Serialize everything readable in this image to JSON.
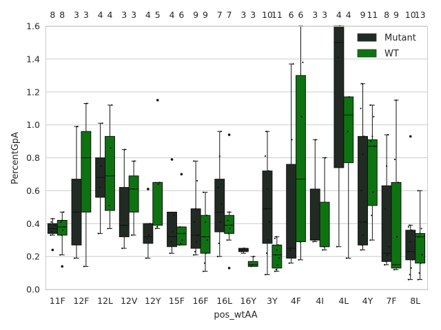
{
  "chart_data": {
    "type": "boxplot",
    "xlabel": "pos_wtAA",
    "ylabel": "PercentGpA",
    "ylim": [
      0.0,
      1.6
    ],
    "yticks": [
      "0.0",
      "0.2",
      "0.4",
      "0.6",
      "0.8",
      "1.0",
      "1.2",
      "1.4",
      "1.6"
    ],
    "grid": "horizontal",
    "legend_position": "top-right",
    "categories": [
      "11F",
      "12F",
      "12L",
      "12V",
      "12Y",
      "15F",
      "16F",
      "16L",
      "16Y",
      "3Y",
      "4F",
      "4I",
      "4L",
      "4Y",
      "7F",
      "8L"
    ],
    "count_labels": [
      [
        "8",
        "8"
      ],
      [
        "3",
        "3"
      ],
      [
        "4",
        "4"
      ],
      [
        "3",
        "3"
      ],
      [
        "4",
        "5"
      ],
      [
        "4",
        "6"
      ],
      [
        "9",
        "9"
      ],
      [
        "7",
        "7"
      ],
      [
        "3",
        "3"
      ],
      [
        "10",
        "11"
      ],
      [
        "6",
        "6"
      ],
      [
        "3",
        "3"
      ],
      [
        "4",
        "4"
      ],
      [
        "9",
        "11"
      ],
      [
        "8",
        "9"
      ],
      [
        "10",
        "13"
      ]
    ],
    "series": [
      {
        "name": "Mutant",
        "color": "#222a24",
        "boxes": [
          {
            "min": 0.33,
            "q1": 0.34,
            "median": 0.37,
            "q3": 0.4,
            "max": 0.43,
            "outliers": [
              0.24
            ],
            "points": [
              0.33,
              0.35,
              0.37,
              0.39,
              0.41,
              0.43
            ]
          },
          {
            "min": 0.19,
            "q1": 0.27,
            "median": 0.47,
            "q3": 0.67,
            "max": 0.99,
            "outliers": [],
            "points": [
              0.19,
              0.47,
              0.99
            ]
          },
          {
            "min": 0.34,
            "q1": 0.56,
            "median": 0.68,
            "q3": 0.8,
            "max": 1.01,
            "outliers": [],
            "points": [
              0.34,
              0.62,
              0.75,
              1.01
            ]
          },
          {
            "min": 0.25,
            "q1": 0.32,
            "median": 0.39,
            "q3": 0.62,
            "max": 0.85,
            "outliers": [],
            "points": [
              0.25,
              0.39,
              0.85
            ]
          },
          {
            "min": 0.19,
            "q1": 0.28,
            "median": 0.32,
            "q3": 0.4,
            "max": 0.4,
            "outliers": [
              0.61
            ],
            "points": [
              0.19,
              0.31,
              0.33,
              0.4
            ]
          },
          {
            "min": 0.22,
            "q1": 0.26,
            "median": 0.32,
            "q3": 0.47,
            "max": 0.47,
            "outliers": [
              0.79
            ],
            "points": [
              0.22,
              0.29,
              0.35,
              0.45
            ]
          },
          {
            "min": 0.21,
            "q1": 0.25,
            "median": 0.33,
            "q3": 0.49,
            "max": 0.78,
            "outliers": [],
            "points": [
              0.21,
              0.23,
              0.29,
              0.33,
              0.41,
              0.49,
              0.66,
              0.78
            ]
          },
          {
            "min": 0.2,
            "q1": 0.35,
            "median": 0.47,
            "q3": 0.67,
            "max": 0.96,
            "outliers": [],
            "points": [
              0.2,
              0.28,
              0.41,
              0.52,
              0.62,
              0.81,
              0.96
            ]
          },
          {
            "min": 0.22,
            "q1": 0.23,
            "median": 0.24,
            "q3": 0.25,
            "max": 0.25,
            "outliers": [],
            "points": [
              0.23,
              0.24,
              0.25
            ]
          },
          {
            "min": 0.09,
            "q1": 0.28,
            "median": 0.49,
            "q3": 0.72,
            "max": 0.96,
            "outliers": [],
            "points": [
              0.09,
              0.22,
              0.3,
              0.41,
              0.49,
              0.61,
              0.72,
              0.81,
              0.96
            ]
          },
          {
            "min": 0.16,
            "q1": 0.19,
            "median": 0.25,
            "q3": 0.76,
            "max": 1.37,
            "outliers": [],
            "points": [
              0.16,
              0.24,
              0.91,
              1.37
            ]
          },
          {
            "min": 0.29,
            "q1": 0.3,
            "median": 0.3,
            "q3": 0.61,
            "max": 0.91,
            "outliers": [],
            "points": [
              0.29,
              0.3,
              0.91
            ]
          },
          {
            "min": 0.26,
            "q1": 0.74,
            "median": 1.5,
            "q3": 1.6,
            "max": 1.6,
            "outliers": [],
            "points": [
              0.26,
              1.41,
              1.6
            ]
          },
          {
            "min": 0.24,
            "q1": 0.27,
            "median": 0.41,
            "q3": 0.93,
            "max": 1.25,
            "outliers": [],
            "points": [
              0.24,
              0.27,
              0.33,
              0.41,
              0.6,
              0.82,
              0.93,
              1.1,
              1.25
            ]
          },
          {
            "min": 0.15,
            "q1": 0.17,
            "median": 0.22,
            "q3": 0.63,
            "max": 0.94,
            "outliers": [],
            "points": [
              0.15,
              0.17,
              0.21,
              0.26,
              0.49,
              0.75,
              0.94
            ]
          },
          {
            "min": 0.06,
            "q1": 0.18,
            "median": 0.23,
            "q3": 0.36,
            "max": 0.39,
            "outliers": [
              0.93
            ],
            "points": [
              0.06,
              0.09,
              0.13,
              0.18,
              0.23,
              0.29,
              0.36,
              0.38,
              0.39
            ]
          }
        ]
      },
      {
        "name": "WT",
        "color": "#0d7311",
        "boxes": [
          {
            "min": 0.21,
            "q1": 0.33,
            "median": 0.38,
            "q3": 0.42,
            "max": 0.47,
            "outliers": [
              0.14
            ],
            "points": [
              0.21,
              0.33,
              0.36,
              0.38,
              0.41,
              0.42,
              0.47
            ]
          },
          {
            "min": 0.14,
            "q1": 0.47,
            "median": 0.8,
            "q3": 0.96,
            "max": 1.13,
            "outliers": [],
            "points": [
              0.14,
              0.8,
              1.13
            ]
          },
          {
            "min": 0.37,
            "q1": 0.48,
            "median": 0.69,
            "q3": 0.93,
            "max": 1.12,
            "outliers": [],
            "points": [
              0.37,
              0.51,
              0.86,
              1.12
            ]
          },
          {
            "min": 0.33,
            "q1": 0.47,
            "median": 0.61,
            "q3": 0.69,
            "max": 0.78,
            "outliers": [],
            "points": [
              0.33,
              0.61,
              0.78
            ]
          },
          {
            "min": 0.37,
            "q1": 0.39,
            "median": 0.65,
            "q3": 0.65,
            "max": 0.65,
            "outliers": [
              1.15
            ],
            "points": [
              0.37,
              0.38,
              0.64,
              0.65
            ]
          },
          {
            "min": 0.27,
            "q1": 0.27,
            "median": 0.34,
            "q3": 0.38,
            "max": 0.38,
            "outliers": [
              0.7
            ],
            "points": [
              0.27,
              0.28,
              0.3,
              0.34,
              0.38
            ]
          },
          {
            "min": 0.11,
            "q1": 0.22,
            "median": 0.32,
            "q3": 0.45,
            "max": 0.59,
            "outliers": [],
            "points": [
              0.11,
              0.16,
              0.22,
              0.3,
              0.32,
              0.41,
              0.45,
              0.59
            ]
          },
          {
            "min": 0.3,
            "q1": 0.34,
            "median": 0.39,
            "q3": 0.45,
            "max": 0.47,
            "outliers": [
              0.13,
              0.94
            ],
            "points": [
              0.3,
              0.34,
              0.37,
              0.39,
              0.42,
              0.47
            ]
          },
          {
            "min": 0.14,
            "q1": 0.14,
            "median": 0.15,
            "q3": 0.17,
            "max": 0.2,
            "outliers": [],
            "points": [
              0.14,
              0.15,
              0.2
            ]
          },
          {
            "min": 0.11,
            "q1": 0.13,
            "median": 0.21,
            "q3": 0.27,
            "max": 0.32,
            "outliers": [],
            "points": [
              0.11,
              0.12,
              0.15,
              0.19,
              0.21,
              0.24,
              0.27,
              0.31,
              0.32
            ]
          },
          {
            "min": 0.18,
            "q1": 0.29,
            "median": 0.67,
            "q3": 1.3,
            "max": 1.6,
            "outliers": [],
            "points": [
              0.18,
              0.29,
              1.05,
              1.38
            ]
          },
          {
            "min": 0.24,
            "q1": 0.26,
            "median": 0.26,
            "q3": 0.53,
            "max": 0.8,
            "outliers": [],
            "points": [
              0.24,
              0.26,
              0.8
            ]
          },
          {
            "min": 0.19,
            "q1": 0.77,
            "median": 1.06,
            "q3": 1.17,
            "max": 1.17,
            "outliers": [],
            "points": [
              0.19,
              0.96,
              1.17
            ]
          },
          {
            "min": 0.3,
            "q1": 0.51,
            "median": 0.87,
            "q3": 0.91,
            "max": 1.12,
            "outliers": [],
            "points": [
              0.3,
              0.45,
              0.59,
              0.87,
              0.9,
              0.93,
              1.05,
              1.12
            ]
          },
          {
            "min": 0.12,
            "q1": 0.13,
            "median": 0.15,
            "q3": 0.65,
            "max": 1.15,
            "outliers": [],
            "points": [
              0.12,
              0.15,
              0.32,
              0.65,
              0.79,
              1.15
            ]
          },
          {
            "min": 0.06,
            "q1": 0.16,
            "median": 0.32,
            "q3": 0.34,
            "max": 0.6,
            "outliers": [],
            "points": [
              0.06,
              0.1,
              0.16,
              0.21,
              0.32,
              0.34,
              0.37,
              0.6
            ]
          }
        ]
      }
    ]
  }
}
